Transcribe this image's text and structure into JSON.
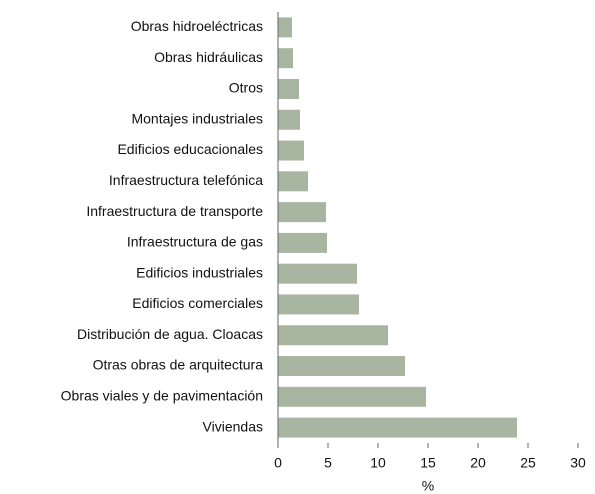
{
  "chart_data": {
    "type": "barh",
    "categories": [
      "Obras hidroeléctricas",
      "Obras hidráulicas",
      "Otros",
      "Montajes industriales",
      "Edificios educacionales",
      "Infraestructura telefónica",
      "Infraestructura de transporte",
      "Infraestructura de gas",
      "Edificios industriales",
      "Edificios comerciales",
      "Distribución de agua. Cloacas",
      "Otras obras de arquitectura",
      "Obras viales y de pavimentación",
      "Viviendas"
    ],
    "values": [
      1.4,
      1.5,
      2.1,
      2.2,
      2.6,
      3.0,
      4.8,
      4.9,
      7.9,
      8.1,
      11.0,
      12.7,
      14.8,
      23.9
    ],
    "color": "#a8b5a0",
    "xlim": [
      0,
      30
    ],
    "xticks": [
      0,
      5,
      10,
      15,
      20,
      25,
      30
    ],
    "xlabel": "%"
  }
}
